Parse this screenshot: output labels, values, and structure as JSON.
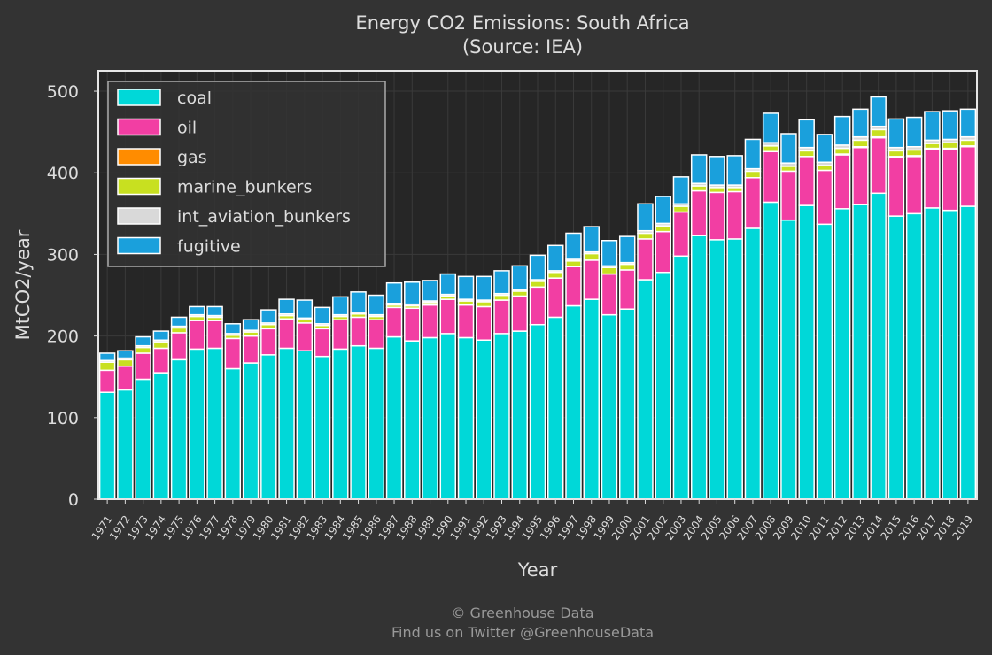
{
  "chart_data": {
    "type": "bar",
    "stacked": true,
    "title": "Energy CO2 Emissions: South Africa",
    "subtitle": "(Source: IEA)",
    "xlabel": "Year",
    "ylabel": "MtCO2/year",
    "ylim": [
      0,
      525
    ],
    "yticks": [
      0,
      100,
      200,
      300,
      400,
      500
    ],
    "grid": true,
    "legend_position": "top-left",
    "categories": [
      "1971",
      "1972",
      "1973",
      "1974",
      "1975",
      "1976",
      "1977",
      "1978",
      "1979",
      "1980",
      "1981",
      "1982",
      "1983",
      "1984",
      "1985",
      "1986",
      "1987",
      "1988",
      "1989",
      "1990",
      "1991",
      "1992",
      "1993",
      "1994",
      "1995",
      "1996",
      "1997",
      "1998",
      "1999",
      "2000",
      "2001",
      "2002",
      "2003",
      "2004",
      "2005",
      "2006",
      "2007",
      "2008",
      "2009",
      "2010",
      "2011",
      "2012",
      "2013",
      "2014",
      "2015",
      "2016",
      "2017",
      "2018",
      "2019"
    ],
    "series": [
      {
        "name": "coal",
        "color": "#00d8d8",
        "values": [
          131,
          134,
          147,
          155,
          171,
          184,
          185,
          160,
          167,
          177,
          185,
          182,
          175,
          184,
          188,
          185,
          199,
          194,
          198,
          203,
          198,
          195,
          203,
          206,
          214,
          223,
          237,
          245,
          226,
          233,
          269,
          278,
          298,
          323,
          318,
          319,
          332,
          364,
          342,
          360,
          337,
          356,
          361,
          375,
          347,
          350,
          357,
          354,
          359
        ]
      },
      {
        "name": "oil",
        "color": "#f23ea3",
        "values": [
          27,
          29,
          32,
          30,
          33,
          35,
          34,
          37,
          33,
          32,
          36,
          34,
          34,
          36,
          35,
          35,
          36,
          40,
          40,
          42,
          40,
          41,
          41,
          43,
          46,
          48,
          48,
          48,
          50,
          48,
          50,
          50,
          54,
          55,
          58,
          58,
          62,
          62,
          60,
          60,
          66,
          66,
          70,
          68,
          72,
          70,
          72,
          75,
          73
        ]
      },
      {
        "name": "gas",
        "color": "#ff8c00",
        "values": [
          0,
          0,
          0,
          0,
          0,
          0,
          0,
          0,
          0,
          0,
          0,
          0,
          0,
          0,
          0,
          0,
          0,
          0,
          0,
          0,
          0,
          0,
          0,
          0,
          0,
          0,
          0,
          0,
          0,
          0,
          0,
          0,
          0,
          0,
          0,
          0,
          0,
          0,
          0,
          0,
          0,
          1,
          1,
          1,
          1,
          1,
          1,
          1,
          1
        ]
      },
      {
        "name": "marine_bunkers",
        "color": "#c8e020",
        "values": [
          10,
          8,
          7,
          8,
          6,
          5,
          4,
          4,
          5,
          5,
          4,
          4,
          4,
          4,
          4,
          4,
          3,
          3,
          3,
          4,
          5,
          6,
          6,
          6,
          7,
          7,
          7,
          8,
          8,
          7,
          7,
          7,
          7,
          6,
          6,
          5,
          8,
          7,
          6,
          7,
          6,
          7,
          8,
          9,
          7,
          7,
          6,
          7,
          7
        ]
      },
      {
        "name": "int_aviation_bunkers",
        "color": "#d9d9d9",
        "values": [
          2,
          2,
          2,
          2,
          2,
          2,
          2,
          2,
          2,
          2,
          2,
          2,
          2,
          2,
          2,
          2,
          2,
          2,
          2,
          2,
          2,
          2,
          2,
          2,
          2,
          2,
          2,
          2,
          2,
          2,
          3,
          3,
          3,
          3,
          3,
          3,
          3,
          4,
          4,
          4,
          4,
          4,
          4,
          4,
          4,
          4,
          4,
          4,
          4
        ]
      },
      {
        "name": "fugitive",
        "color": "#1aa0dc",
        "values": [
          9,
          9,
          11,
          11,
          11,
          10,
          11,
          12,
          13,
          16,
          18,
          22,
          20,
          22,
          25,
          24,
          25,
          27,
          25,
          25,
          28,
          29,
          28,
          29,
          30,
          31,
          32,
          31,
          31,
          32,
          33,
          33,
          33,
          35,
          35,
          36,
          36,
          36,
          36,
          34,
          34,
          35,
          34,
          36,
          35,
          36,
          35,
          35,
          34
        ]
      }
    ]
  },
  "footer": {
    "line1": "© Greenhouse Data",
    "line2": "Find us on Twitter @GreenhouseData"
  }
}
